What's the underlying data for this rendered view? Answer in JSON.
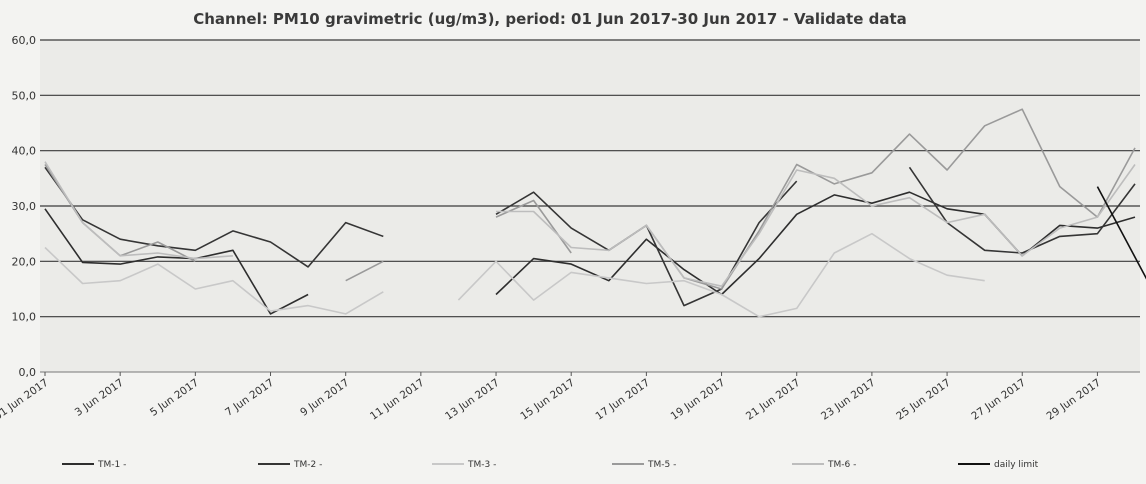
{
  "chart_data": {
    "type": "line",
    "title": "Channel: PM10 gravimetric (ug/m3), period: 01 Jun 2017-30 Jun 2017 - Validate data",
    "xlabel": "",
    "ylabel": "",
    "ylim": [
      0,
      60
    ],
    "y_ticks": [
      0,
      10,
      20,
      30,
      40,
      50,
      60
    ],
    "y_tick_labels": [
      "0,0",
      "10,0",
      "20,0",
      "30,0",
      "40,0",
      "50,0",
      "60,0"
    ],
    "grid": "horizontal",
    "legend_position": "bottom",
    "x_tick_labels": [
      "01 Jun 2017",
      "3 Jun 2017",
      "5 Jun 2017",
      "7 Jun 2017",
      "9 Jun 2017",
      "11 Jun 2017",
      "13 Jun 2017",
      "15 Jun 2017",
      "17 Jun 2017",
      "19 Jun 2017",
      "21 Jun 2017",
      "23 Jun 2017",
      "25 Jun 2017",
      "27 Jun 2017",
      "29 Jun 2017"
    ],
    "x_tick_days": [
      1,
      3,
      5,
      7,
      9,
      11,
      13,
      15,
      17,
      19,
      21,
      23,
      25,
      27,
      29
    ],
    "x_range_days": [
      1,
      30
    ],
    "series": [
      {
        "name": "TM-1 -",
        "color": "#2e2e2e",
        "values": [
          29.5,
          19.8,
          19.5,
          20.8,
          20.5,
          22.0,
          10.5,
          14.0,
          null,
          null,
          null,
          null,
          14.0,
          20.5,
          19.5,
          16.5,
          24.0,
          18.5,
          14.0,
          20.5,
          28.5,
          32.0,
          30.5,
          32.5,
          29.5,
          28.5,
          21.0,
          26.5,
          26.0,
          28.0
        ]
      },
      {
        "name": "TM-2 -",
        "color": "#353535",
        "values": [
          37.0,
          27.5,
          24.0,
          22.8,
          22.0,
          25.5,
          23.5,
          19.0,
          27.0,
          24.5,
          null,
          null,
          28.5,
          32.5,
          26.0,
          22.0,
          26.5,
          12.0,
          15.0,
          27.0,
          34.5,
          null,
          null,
          37.0,
          27.0,
          22.0,
          21.5,
          24.5,
          25.0,
          34.0
        ]
      },
      {
        "name": "TM-3 -",
        "color": "#c8c8c8",
        "values": [
          22.5,
          16.0,
          16.5,
          19.5,
          15.0,
          16.5,
          11.0,
          12.0,
          10.5,
          14.5,
          null,
          13.0,
          20.0,
          13.0,
          18.0,
          17.0,
          16.0,
          16.5,
          14.0,
          10.0,
          11.5,
          21.5,
          25.0,
          20.5,
          17.5,
          16.5,
          null,
          null,
          null,
          null
        ]
      },
      {
        "name": "TM-5 -",
        "color": "#9a9a9a",
        "values": [
          37.5,
          27.0,
          21.0,
          23.5,
          20.0,
          null,
          null,
          null,
          16.5,
          20.0,
          null,
          null,
          28.0,
          31.0,
          21.5,
          null,
          26.5,
          17.0,
          15.0,
          25.5,
          37.5,
          34.0,
          36.0,
          43.0,
          36.5,
          44.5,
          47.5,
          33.5,
          28.0,
          40.5
        ]
      },
      {
        "name": "TM-6 -",
        "color": "#bdbdbd",
        "values": [
          38.0,
          27.0,
          21.0,
          21.5,
          20.5,
          21.0,
          null,
          null,
          null,
          null,
          null,
          null,
          29.0,
          29.0,
          22.5,
          22.0,
          26.5,
          17.0,
          15.5,
          25.0,
          36.5,
          35.0,
          30.0,
          31.5,
          27.0,
          28.5,
          21.0,
          26.0,
          28.0,
          37.5
        ]
      },
      {
        "name": "daily limit",
        "color": "#111111",
        "values": [
          null,
          null,
          null,
          null,
          null,
          null,
          null,
          null,
          null,
          null,
          null,
          null,
          null,
          null,
          null,
          null,
          null,
          null,
          null,
          null,
          null,
          null,
          null,
          null,
          null,
          null,
          null,
          null,
          null,
          33.5
        ]
      }
    ]
  }
}
